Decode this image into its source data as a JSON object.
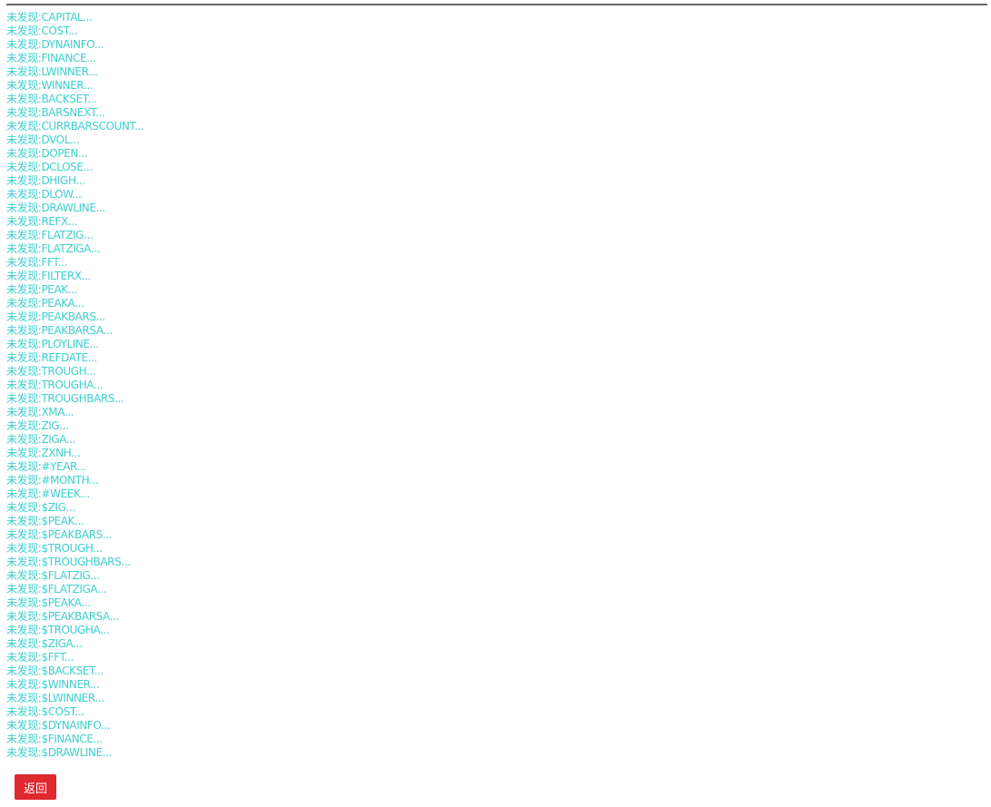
{
  "prefix": "未发现:",
  "items": [
    "CAPITAL...",
    "COST...",
    "DYNAINFO...",
    "FINANCE...",
    "LWINNER...",
    "WINNER...",
    "BACKSET...",
    "BARSNEXT...",
    "CURRBARSCOUNT...",
    "DVOL...",
    "DOPEN...",
    "DCLOSE...",
    "DHIGH...",
    "DLOW...",
    "DRAWLINE...",
    "REFX...",
    "FLATZIG...",
    "FLATZIGA...",
    "FFT...",
    "FILTERX...",
    "PEAK...",
    "PEAKA...",
    "PEAKBARS...",
    "PEAKBARSA...",
    "PLOYLINE...",
    "REFDATE...",
    "TROUGH...",
    "TROUGHA...",
    "TROUGHBARS...",
    "XMA...",
    "ZIG...",
    "ZIGA...",
    "ZXNH...",
    "#YEAR...",
    "#MONTH...",
    "#WEEK...",
    "$ZIG...",
    "$PEAK...",
    "$PEAKBARS...",
    "$TROUGH...",
    "$TROUGHBARS...",
    "$FLATZIG...",
    "$FLATZIGA...",
    "$PEAKA...",
    "$PEAKBARSA...",
    "$TROUGHA...",
    "$ZIGA...",
    "$FFT...",
    "$BACKSET...",
    "$WINNER...",
    "$LWINNER...",
    "$COST...",
    "$DYNAINFO...",
    "$FINANCE...",
    "$DRAWLINE..."
  ],
  "back_label": "返回",
  "colors": {
    "text": "#3fcfcf",
    "button": "#e0282f",
    "rule": "#666666"
  }
}
